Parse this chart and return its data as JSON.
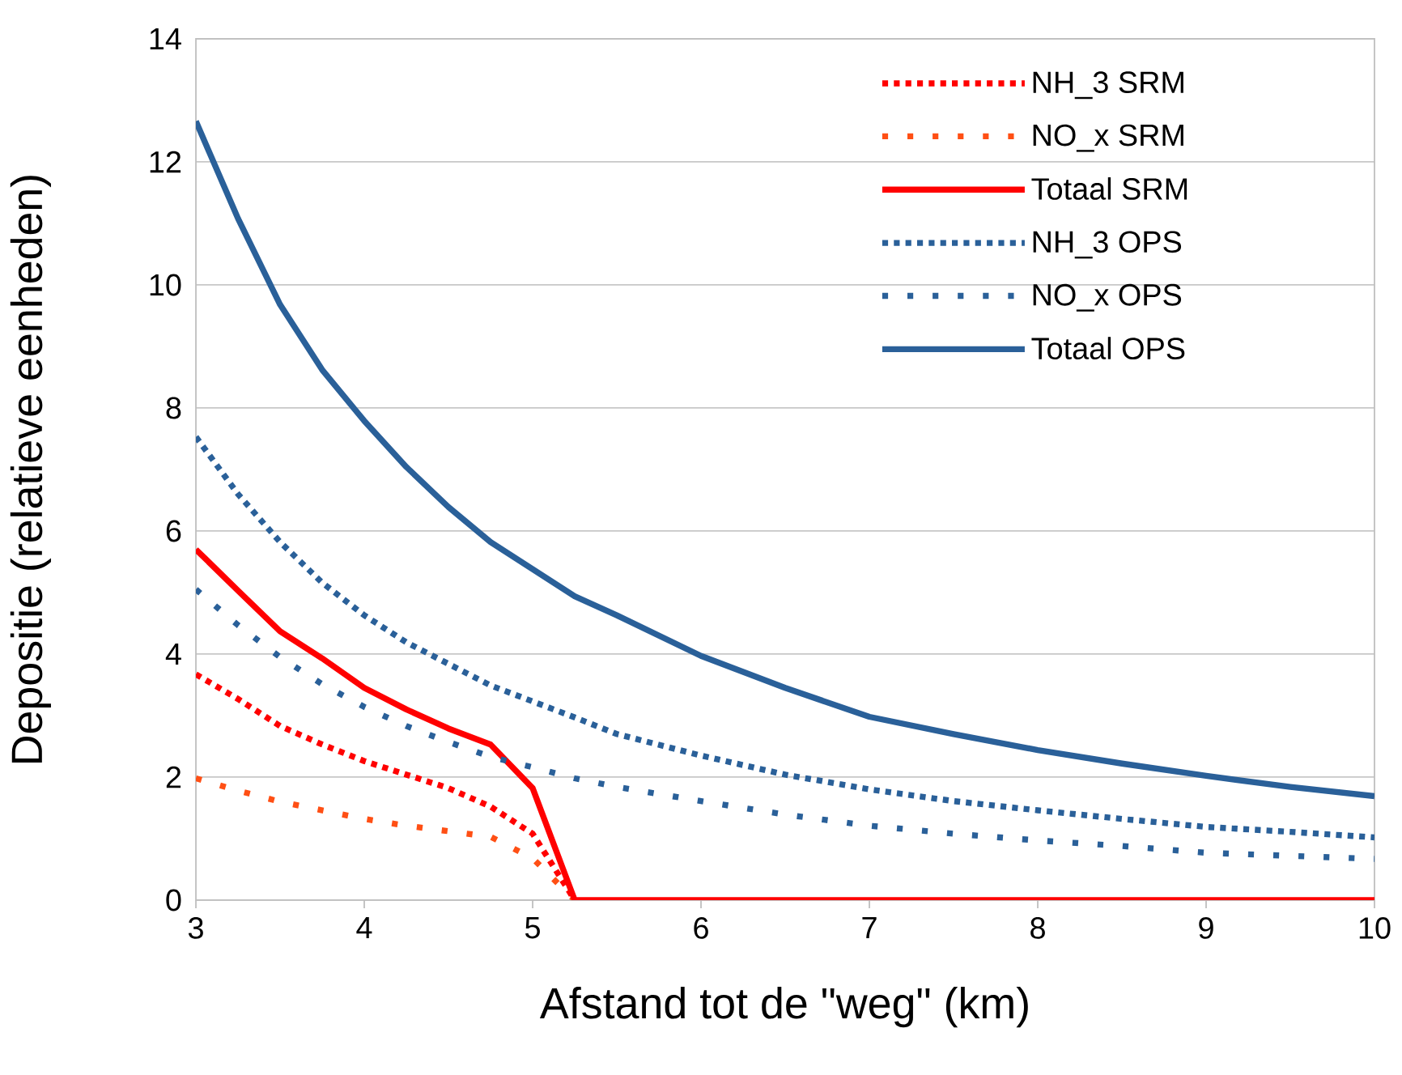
{
  "chart_data": {
    "type": "line",
    "xlabel": "Afstand tot de \"weg\" (km)",
    "ylabel": "Depositie (relatieve eenheden)",
    "x": [
      3,
      3.25,
      3.5,
      3.75,
      4,
      4.25,
      4.5,
      4.75,
      5,
      5.25,
      5.5,
      6,
      6.5,
      7,
      7.5,
      8,
      8.5,
      9,
      9.5,
      10
    ],
    "xlim": [
      3,
      10
    ],
    "xticks": [
      3,
      4,
      5,
      6,
      7,
      8,
      9,
      10
    ],
    "ylim": [
      0,
      14
    ],
    "yticks": [
      0,
      2,
      4,
      6,
      8,
      10,
      12,
      14
    ],
    "grid": "y",
    "legend": "top right",
    "marker": "none",
    "series": [
      {
        "name": "NH_3 SRM",
        "color": "#ff0000",
        "line_style": "dotted",
        "values": [
          3.67,
          3.27,
          2.83,
          2.53,
          2.26,
          2.04,
          1.82,
          1.52,
          1.08,
          0,
          null,
          null,
          null,
          null,
          null,
          null,
          null,
          null,
          null,
          null
        ]
      },
      {
        "name": "NO_x SRM",
        "color": "#ff4f14",
        "line_style": "loosely dotted",
        "values": [
          1.98,
          1.78,
          1.6,
          1.46,
          1.32,
          1.21,
          1.12,
          1.03,
          0.68,
          0,
          null,
          null,
          null,
          null,
          null,
          null,
          null,
          null,
          null,
          null
        ]
      },
      {
        "name": "Totaal SRM",
        "color": "#ff0000",
        "line_style": "solid",
        "values": [
          5.7,
          5.03,
          4.37,
          3.93,
          3.45,
          3.1,
          2.79,
          2.53,
          1.82,
          0,
          0,
          0,
          0,
          0,
          0,
          0,
          0,
          0,
          0,
          0
        ]
      },
      {
        "name": "NH_3 OPS",
        "color": "#2a6099",
        "line_style": "dotted",
        "values": [
          7.53,
          6.6,
          5.82,
          5.16,
          4.63,
          4.19,
          3.84,
          3.49,
          3.23,
          2.97,
          2.7,
          2.35,
          2.04,
          1.8,
          1.61,
          1.46,
          1.32,
          1.19,
          1.11,
          1.02
        ]
      },
      {
        "name": "NO_x OPS",
        "color": "#2a6099",
        "line_style": "loosely dotted",
        "values": [
          5.05,
          4.47,
          3.95,
          3.51,
          3.14,
          2.83,
          2.57,
          2.33,
          2.16,
          1.98,
          1.84,
          1.61,
          1.39,
          1.21,
          1.08,
          0.97,
          0.88,
          0.77,
          0.72,
          0.67
        ]
      },
      {
        "name": "Totaal OPS",
        "color": "#2a6099",
        "line_style": "solid",
        "values": [
          12.66,
          11.08,
          9.68,
          8.62,
          7.79,
          7.04,
          6.39,
          5.82,
          5.38,
          4.94,
          4.63,
          3.97,
          3.45,
          2.98,
          2.7,
          2.44,
          2.22,
          2.02,
          1.84,
          1.69
        ]
      }
    ]
  }
}
